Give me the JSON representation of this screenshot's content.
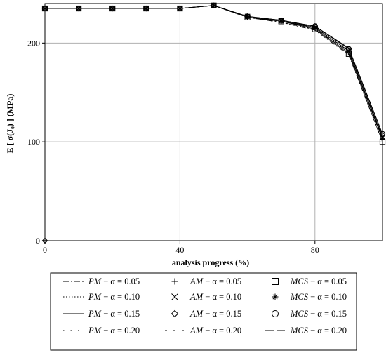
{
  "chart_data": {
    "type": "line",
    "xlabel": "analysis progress (%)",
    "ylabel": "E [ σ(J₀) ] (MPa)",
    "xlim": [
      0,
      100
    ],
    "ylim": [
      0,
      240
    ],
    "xticks": [
      0,
      40,
      80
    ],
    "yticks": [
      0,
      100,
      200
    ],
    "x_tick_labels": [
      "0",
      "40",
      "80"
    ],
    "y_tick_labels": [
      "0",
      "100",
      "200"
    ],
    "grid": true,
    "legend_placement": "bottom",
    "x": [
      0,
      10,
      20,
      30,
      40,
      50,
      60,
      70,
      80,
      90,
      100
    ],
    "series": [
      {
        "name": "PM − α = 0.05",
        "method": "PM",
        "alpha": "α = 0.05",
        "style": "dashdot",
        "marker": "",
        "values": [
          235,
          235,
          235,
          235,
          235,
          238,
          226,
          221,
          213,
          188,
          100
        ]
      },
      {
        "name": "PM − α = 0.10",
        "method": "PM",
        "alpha": "α = 0.10",
        "style": "dotted",
        "marker": "",
        "values": [
          235,
          235,
          235,
          235,
          235,
          238,
          227,
          222,
          215,
          191,
          104
        ]
      },
      {
        "name": "PM − α = 0.15",
        "method": "PM",
        "alpha": "α = 0.15",
        "style": "solid",
        "marker": "",
        "values": [
          235,
          235,
          235,
          235,
          235,
          238,
          227,
          223,
          217,
          195,
          108
        ]
      },
      {
        "name": "PM − α = 0.20",
        "method": "PM",
        "alpha": "α = 0.20",
        "style": "sparse-dot",
        "marker": "",
        "values": [
          235,
          235,
          235,
          235,
          235,
          238,
          226,
          221,
          214,
          190,
          102
        ]
      },
      {
        "name": "AM − α = 0.05",
        "method": "AM",
        "alpha": "α = 0.05",
        "style": "none",
        "marker": "plus",
        "values": [
          235,
          235,
          235,
          235,
          235,
          238,
          226,
          222,
          215,
          190,
          103
        ]
      },
      {
        "name": "AM − α = 0.10",
        "method": "AM",
        "alpha": "α = 0.10",
        "style": "none",
        "marker": "cross",
        "values": [
          235,
          235,
          235,
          235,
          235,
          238,
          227,
          223,
          216,
          192,
          105
        ]
      },
      {
        "name": "AM − α = 0.15",
        "method": "AM",
        "alpha": "α = 0.15",
        "style": "none",
        "marker": "diamond",
        "values": [
          235,
          235,
          235,
          235,
          235,
          238,
          227,
          223,
          217,
          194,
          107
        ]
      },
      {
        "name": "AM − α = 0.20",
        "method": "AM",
        "alpha": "α = 0.20",
        "style": "dash-gap",
        "marker": "",
        "values": [
          235,
          235,
          235,
          235,
          235,
          238,
          226,
          221,
          214,
          191,
          103
        ]
      },
      {
        "name": "MCS − α = 0.05",
        "method": "MCS",
        "alpha": "α = 0.05",
        "style": "none",
        "marker": "square",
        "values": [
          235,
          235,
          235,
          235,
          235,
          238,
          226,
          222,
          214,
          189,
          100
        ]
      },
      {
        "name": "MCS − α = 0.10",
        "method": "MCS",
        "alpha": "α = 0.10",
        "style": "none",
        "marker": "star",
        "values": [
          235,
          235,
          235,
          235,
          235,
          238,
          227,
          222,
          216,
          192,
          104
        ]
      },
      {
        "name": "MCS − α = 0.15",
        "method": "MCS",
        "alpha": "α = 0.15",
        "style": "none",
        "marker": "circle",
        "values": [
          235,
          235,
          235,
          235,
          235,
          238,
          227,
          223,
          217,
          194,
          108
        ]
      },
      {
        "name": "MCS − α = 0.20",
        "method": "MCS",
        "alpha": "α = 0.20",
        "style": "longdash",
        "marker": "",
        "values": [
          235,
          235,
          235,
          235,
          235,
          238,
          226,
          222,
          216,
          192,
          105
        ]
      }
    ],
    "origin_marker": {
      "x": 0,
      "y": 0,
      "marker": "diamond"
    }
  }
}
